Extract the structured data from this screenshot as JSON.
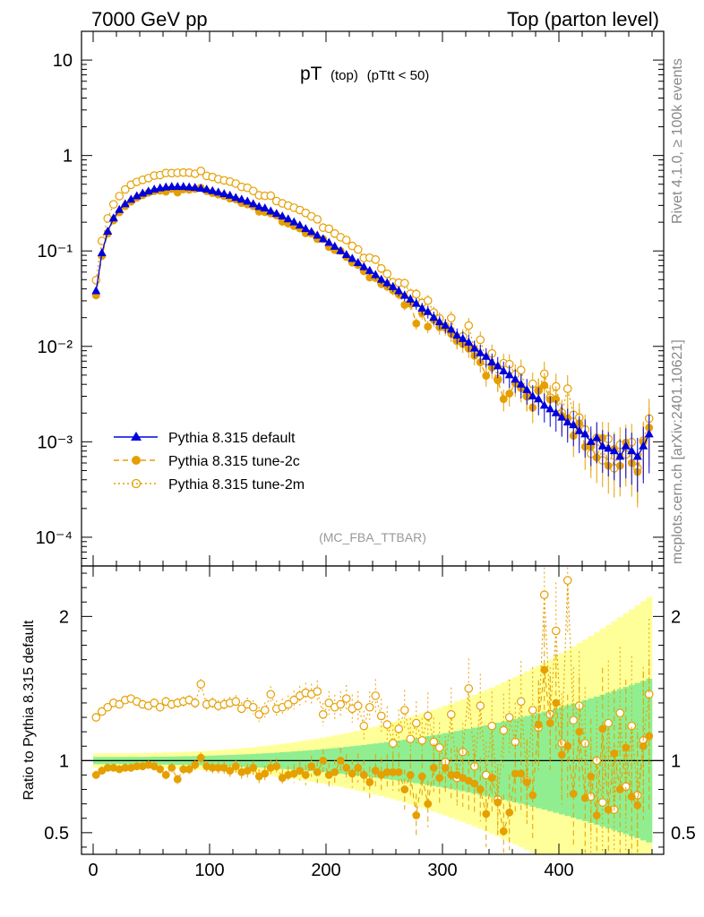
{
  "header": {
    "left": "7000 GeV pp",
    "right": "Top (parton level)"
  },
  "side_labels": {
    "rivet": "Rivet 4.1.0, ≥ 100k events",
    "mcplots": "mcplots.cern.ch [arXiv:2401.10621]"
  },
  "colors": {
    "default": "#0000dd",
    "tune2c": "#e69f00",
    "tune2m": "#e69f00",
    "band_inner": "#90ee90",
    "band_outer": "#ffff99"
  },
  "chart_data": [
    {
      "type": "line",
      "title": "pT (top) (pTtt < 50)",
      "title_main": "pT",
      "title_sub": "(top)",
      "title_cut": "(pTtt < 50)",
      "watermark": "(MC_FBA_TTBAR)",
      "xlabel": "",
      "ylabel": "",
      "yscale": "log",
      "xlim": [
        -10,
        490
      ],
      "ylim": [
        5e-05,
        20
      ],
      "y_ticks": [
        {
          "value": 10,
          "label": "10"
        },
        {
          "value": 1,
          "label": "1"
        },
        {
          "value": 0.1,
          "label": "10⁻¹"
        },
        {
          "value": 0.01,
          "label": "10⁻²"
        },
        {
          "value": 0.001,
          "label": "10⁻³"
        },
        {
          "value": 0.0001,
          "label": "10⁻⁴"
        }
      ],
      "legend_position": "bottom-left",
      "x": [
        2.5,
        7.5,
        12.5,
        17.5,
        22.5,
        27.5,
        32.5,
        37.5,
        42.5,
        47.5,
        52.5,
        57.5,
        62.5,
        67.5,
        72.5,
        77.5,
        82.5,
        87.5,
        92.5,
        97.5,
        102.5,
        107.5,
        112.5,
        117.5,
        122.5,
        127.5,
        132.5,
        137.5,
        142.5,
        147.5,
        152.5,
        157.5,
        162.5,
        167.5,
        172.5,
        177.5,
        182.5,
        187.5,
        192.5,
        197.5,
        202.5,
        207.5,
        212.5,
        217.5,
        222.5,
        227.5,
        232.5,
        237.5,
        242.5,
        247.5,
        252.5,
        257.5,
        262.5,
        267.5,
        272.5,
        277.5,
        282.5,
        287.5,
        292.5,
        297.5,
        302.5,
        307.5,
        312.5,
        317.5,
        322.5,
        327.5,
        332.5,
        337.5,
        342.5,
        347.5,
        352.5,
        357.5,
        362.5,
        367.5,
        372.5,
        377.5,
        382.5,
        387.5,
        392.5,
        397.5,
        402.5,
        407.5,
        412.5,
        417.5,
        422.5,
        427.5,
        432.5,
        437.5,
        442.5,
        447.5,
        452.5,
        457.5,
        462.5,
        467.5,
        472.5,
        477.5
      ],
      "series": [
        {
          "name": "Pythia 8.315 default",
          "style": "solid-line-filled-triangle",
          "values": [
            0.038,
            0.095,
            0.16,
            0.22,
            0.27,
            0.31,
            0.345,
            0.375,
            0.4,
            0.42,
            0.44,
            0.455,
            0.465,
            0.47,
            0.47,
            0.47,
            0.465,
            0.46,
            0.45,
            0.44,
            0.425,
            0.41,
            0.395,
            0.38,
            0.36,
            0.345,
            0.33,
            0.31,
            0.29,
            0.28,
            0.26,
            0.245,
            0.23,
            0.215,
            0.2,
            0.185,
            0.17,
            0.158,
            0.145,
            0.133,
            0.122,
            0.111,
            0.1,
            0.091,
            0.083,
            0.075,
            0.068,
            0.062,
            0.056,
            0.05,
            0.046,
            0.042,
            0.038,
            0.034,
            0.031,
            0.028,
            0.025,
            0.023,
            0.02,
            0.018,
            0.0165,
            0.015,
            0.013,
            0.012,
            0.011,
            0.0095,
            0.0085,
            0.0078,
            0.0068,
            0.0062,
            0.0055,
            0.005,
            0.0045,
            0.004,
            0.0035,
            0.003,
            0.0028,
            0.0024,
            0.0022,
            0.002,
            0.0018,
            0.0016,
            0.0015,
            0.0013,
            0.0012,
            0.001,
            0.0011,
            0.0009,
            0.00085,
            0.0008,
            0.0007,
            0.0009,
            0.0008,
            0.0007,
            0.0009,
            0.0012
          ]
        },
        {
          "name": "Pythia 8.315 tune-2c",
          "style": "dashed-line-filled-circle",
          "ratio": [
            0.9,
            0.93,
            0.95,
            0.95,
            0.94,
            0.95,
            0.95,
            0.96,
            0.96,
            0.97,
            0.96,
            0.94,
            0.9,
            0.95,
            0.87,
            0.94,
            0.94,
            0.97,
            1.02,
            0.96,
            0.95,
            0.95,
            0.95,
            0.93,
            0.96,
            0.92,
            0.93,
            0.95,
            0.89,
            0.91,
            0.95,
            0.96,
            0.88,
            0.9,
            0.91,
            0.93,
            0.9,
            0.96,
            0.92,
            1.0,
            0.9,
            0.92,
            1.0,
            0.95,
            0.91,
            0.95,
            0.9,
            0.85,
            0.93,
            0.9,
            0.92,
            0.92,
            0.92,
            0.8,
            0.9,
            0.62,
            0.89,
            0.7,
            0.95,
            0.88,
            0.95,
            0.9,
            0.9,
            0.88,
            0.86,
            0.84,
            0.8,
            0.63,
            0.88,
            0.71,
            0.51,
            0.64,
            0.91,
            0.91,
            0.85,
            0.76,
            1.25,
            1.63,
            1.26,
            1.4,
            1.04,
            1.1,
            0.77,
            1.2,
            0.74,
            0.89,
            0.62,
            1.22,
            0.66,
            1.05,
            0.8,
            1.09,
            0.75,
            0.69,
            1.1,
            1.17
          ]
        },
        {
          "name": "Pythia 8.315 tune-2m",
          "style": "dotted-line-open-circle",
          "ratio": [
            1.3,
            1.34,
            1.37,
            1.4,
            1.39,
            1.42,
            1.43,
            1.41,
            1.39,
            1.38,
            1.4,
            1.37,
            1.41,
            1.39,
            1.4,
            1.41,
            1.42,
            1.4,
            1.53,
            1.39,
            1.4,
            1.38,
            1.39,
            1.4,
            1.41,
            1.36,
            1.39,
            1.37,
            1.32,
            1.35,
            1.46,
            1.36,
            1.37,
            1.39,
            1.42,
            1.45,
            1.47,
            1.46,
            1.48,
            1.32,
            1.4,
            1.37,
            1.39,
            1.43,
            1.36,
            1.38,
            1.24,
            1.37,
            1.45,
            1.31,
            1.25,
            1.12,
            1.22,
            1.35,
            1.15,
            1.26,
            1.14,
            1.31,
            1.13,
            1.09,
            0.99,
            1.32,
            0.88,
            1.06,
            1.5,
            0.96,
            1.38,
            0.9,
            1.24,
            0.73,
            1.21,
            1.3,
            1.13,
            1.41,
            0.86,
            1.35,
            1.23,
            2.15,
            1.32,
            1.9,
            1.12,
            2.25,
            1.28,
            1.38,
            1.12,
            0.75,
            1.0,
            0.71,
            1.26,
            0.66,
            1.33,
            0.82,
            1.24,
            0.76,
            1.14,
            1.46
          ]
        }
      ]
    },
    {
      "type": "line",
      "title": "Ratio to Pythia 8.315 default",
      "ylabel": "Ratio to Pythia 8.315 default",
      "xlabel": "",
      "xlim": [
        -10,
        490
      ],
      "ylim": [
        0.35,
        2.35
      ],
      "x_ticks": [
        0,
        100,
        200,
        300,
        400
      ],
      "y_ticks": [
        0.5,
        1,
        2
      ],
      "reference_line": 1,
      "bands": [
        {
          "name": "stat 1σ",
          "color": "band_inner"
        },
        {
          "name": "stat 2σ",
          "color": "band_outer"
        }
      ]
    }
  ]
}
